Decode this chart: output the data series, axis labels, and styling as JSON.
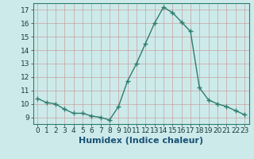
{
  "x": [
    0,
    1,
    2,
    3,
    4,
    5,
    6,
    7,
    8,
    9,
    10,
    11,
    12,
    13,
    14,
    15,
    16,
    17,
    18,
    19,
    20,
    21,
    22,
    23
  ],
  "y": [
    10.4,
    10.1,
    10.0,
    9.6,
    9.3,
    9.3,
    9.1,
    9.0,
    8.8,
    9.8,
    11.7,
    13.0,
    14.5,
    16.0,
    17.2,
    16.8,
    16.1,
    15.4,
    11.2,
    10.3,
    10.0,
    9.8,
    9.5,
    9.2
  ],
  "line_color": "#2e7d6e",
  "marker": "+",
  "marker_size": 4,
  "linewidth": 1.0,
  "xlabel": "Humidex (Indice chaleur)",
  "xlabel_fontsize": 8,
  "xlabel_color": "#1a5276",
  "xlim": [
    -0.5,
    23.5
  ],
  "ylim": [
    8.5,
    17.5
  ],
  "yticks": [
    9,
    10,
    11,
    12,
    13,
    14,
    15,
    16,
    17
  ],
  "xticks": [
    0,
    1,
    2,
    3,
    4,
    5,
    6,
    7,
    8,
    9,
    10,
    11,
    12,
    13,
    14,
    15,
    16,
    17,
    18,
    19,
    20,
    21,
    22,
    23
  ],
  "background_color": "#cdeaea",
  "grid_color": "#c8a0a0",
  "tick_fontsize": 6.5
}
